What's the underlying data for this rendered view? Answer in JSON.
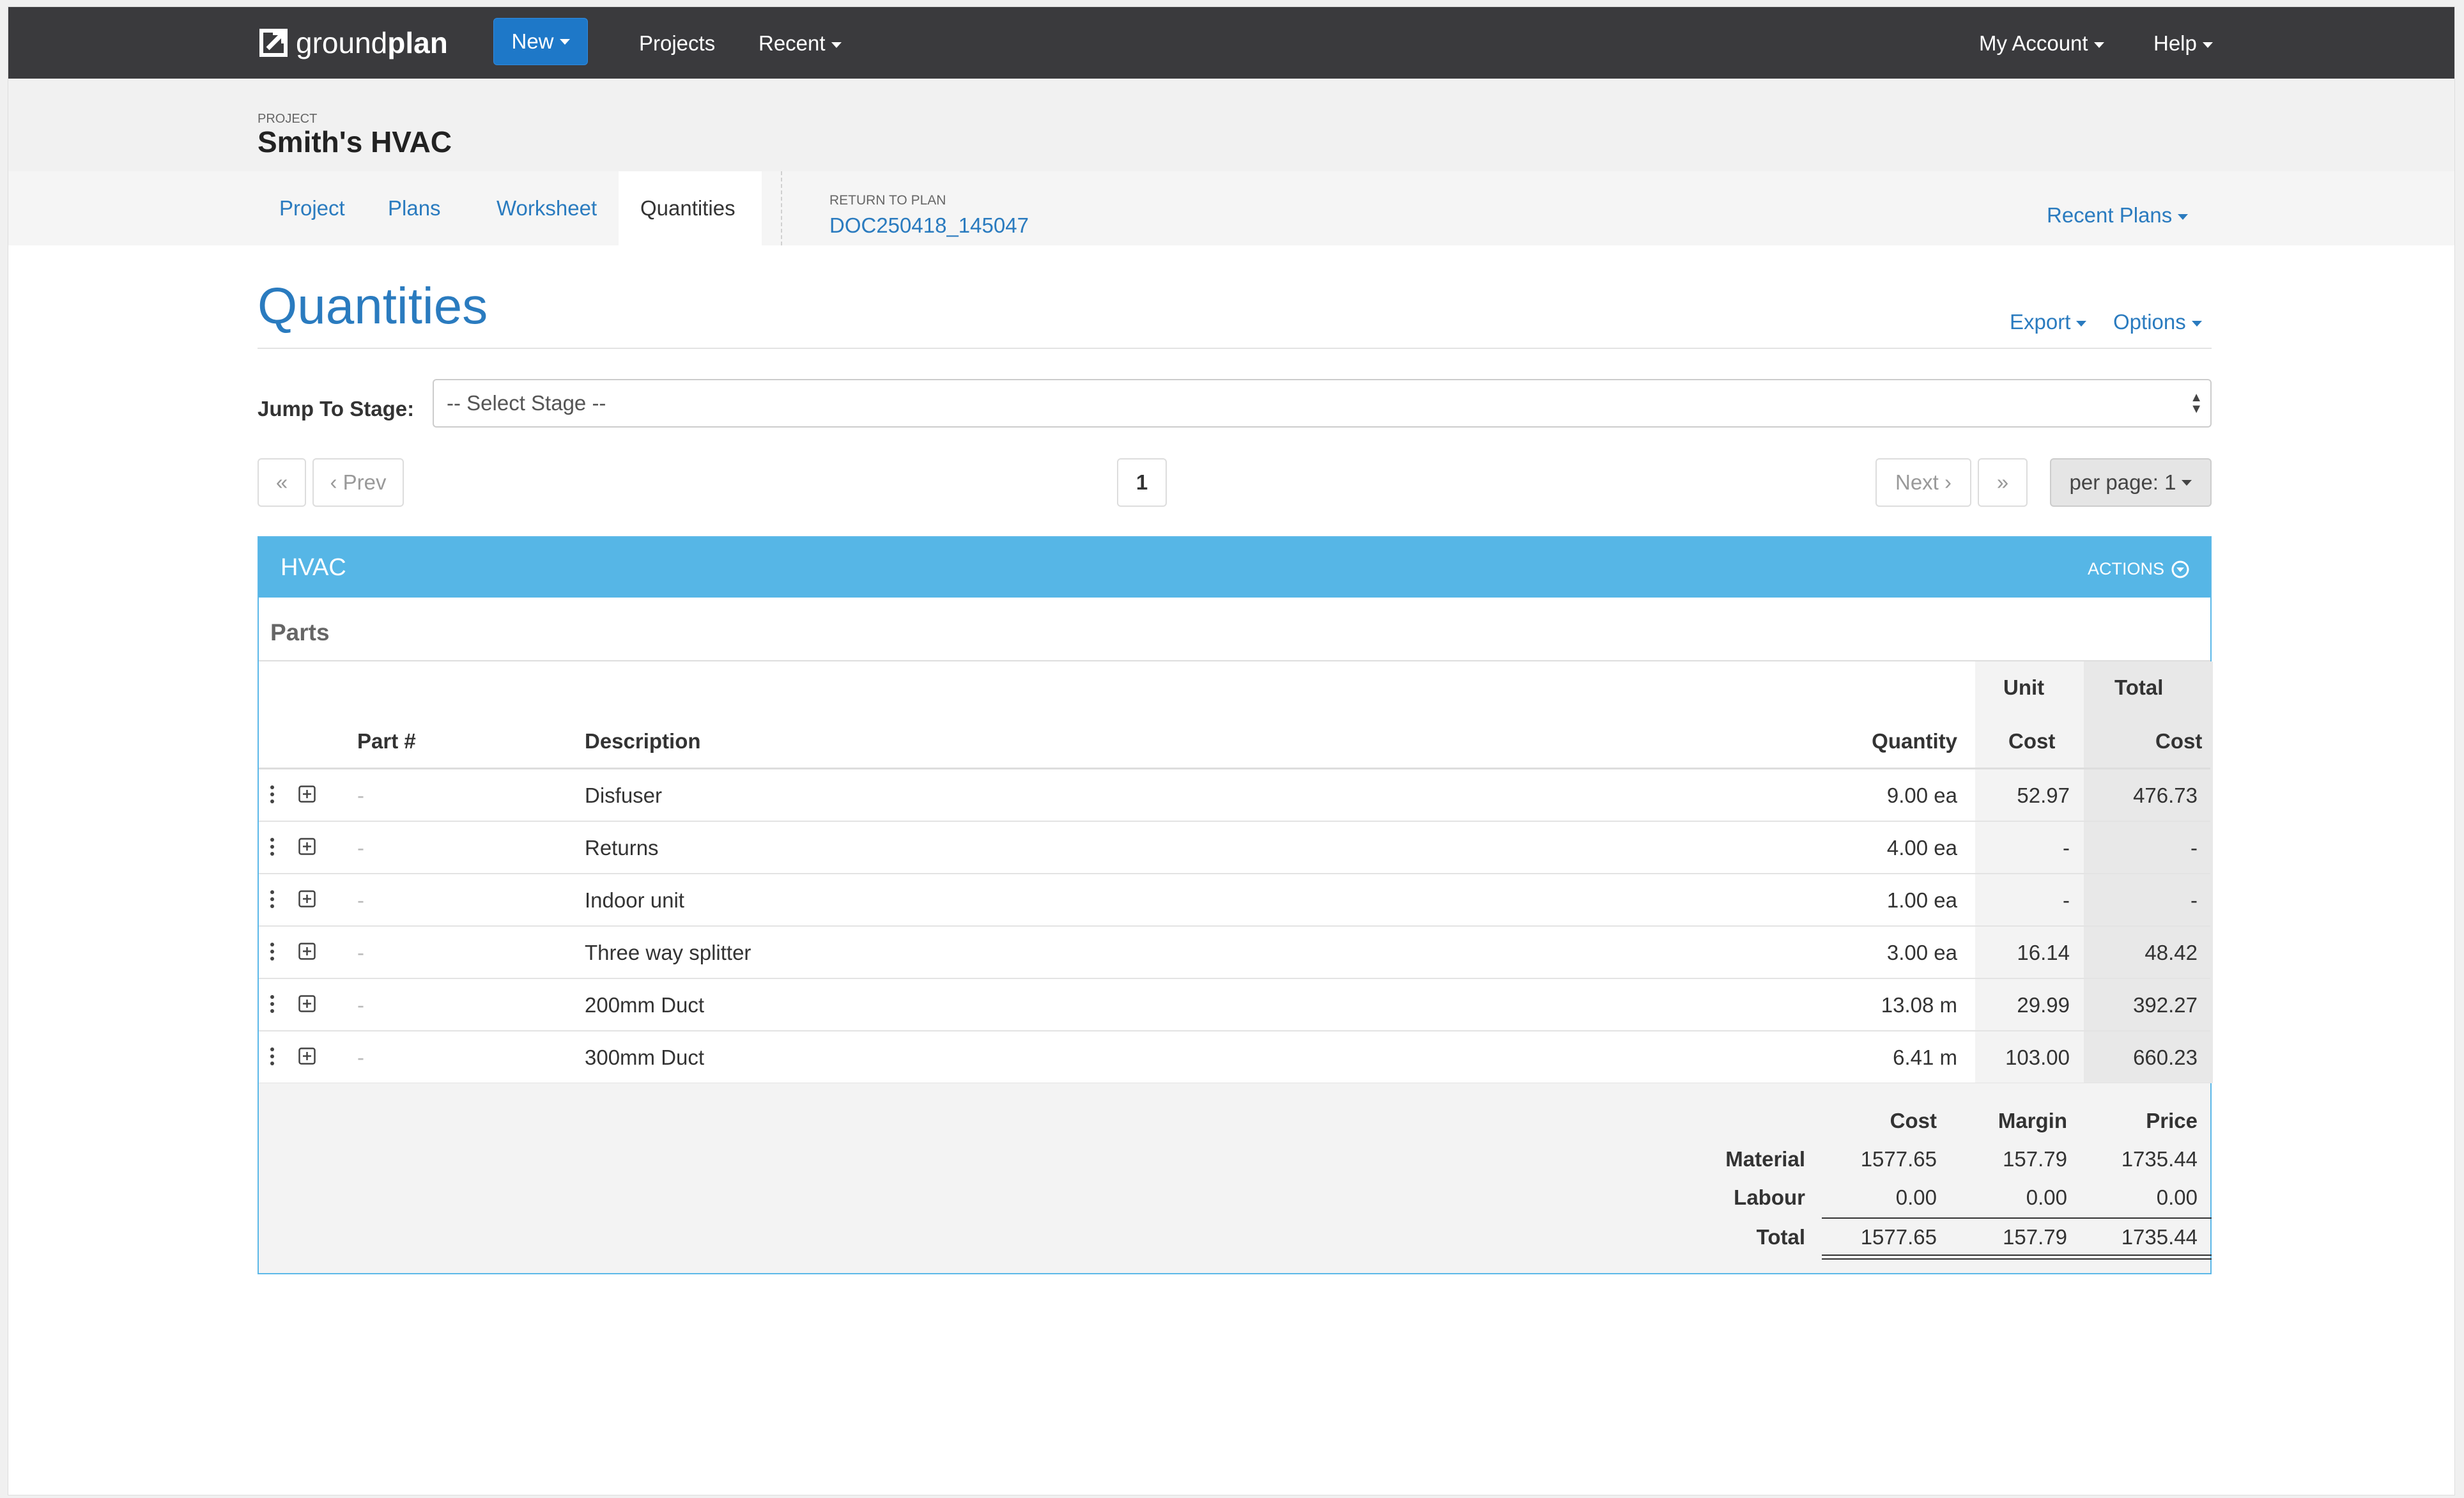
{
  "nav": {
    "logo_regular": "ground",
    "logo_bold": "plan",
    "new_label": "New",
    "projects_label": "Projects",
    "recent_label": "Recent",
    "account_label": "My Account",
    "help_label": "Help"
  },
  "project": {
    "label": "PROJECT",
    "title": "Smith's HVAC"
  },
  "tabs": [
    {
      "label": "Project"
    },
    {
      "label": "Plans"
    },
    {
      "label": "Worksheet"
    },
    {
      "label": "Quantities",
      "active": true
    }
  ],
  "return_to_plan": {
    "label": "RETURN TO PLAN",
    "doc": "DOC250418_145047"
  },
  "recent_plans_label": "Recent Plans",
  "page": {
    "title": "Quantities",
    "export_label": "Export",
    "options_label": "Options"
  },
  "stage": {
    "label": "Jump To Stage:",
    "value": "-- Select Stage --"
  },
  "pagination": {
    "first": "«",
    "prev": "‹ Prev",
    "current": "1",
    "next": "Next ›",
    "last": "»",
    "per_page": "per page: 1"
  },
  "panel": {
    "title": "HVAC",
    "actions_label": "ACTIONS",
    "section_title": "Parts",
    "headers": {
      "part": "Part #",
      "description": "Description",
      "quantity": "Quantity",
      "unit_top": "Unit",
      "unit_bottom": "Cost",
      "total_top": "Total",
      "total_bottom": "Cost"
    },
    "rows": [
      {
        "part": "-",
        "description": "Disfuser",
        "quantity": "9.00 ea",
        "unit_cost": "52.97",
        "total_cost": "476.73"
      },
      {
        "part": "-",
        "description": "Returns",
        "quantity": "4.00 ea",
        "unit_cost": "-",
        "total_cost": "-"
      },
      {
        "part": "-",
        "description": "Indoor unit",
        "quantity": "1.00 ea",
        "unit_cost": "-",
        "total_cost": "-"
      },
      {
        "part": "-",
        "description": "Three way splitter",
        "quantity": "3.00 ea",
        "unit_cost": "16.14",
        "total_cost": "48.42"
      },
      {
        "part": "-",
        "description": "200mm Duct",
        "quantity": "13.08 m",
        "unit_cost": "29.99",
        "total_cost": "392.27"
      },
      {
        "part": "-",
        "description": "300mm Duct",
        "quantity": "6.41 m",
        "unit_cost": "103.00",
        "total_cost": "660.23"
      }
    ],
    "summary": {
      "headers": {
        "cost": "Cost",
        "margin": "Margin",
        "price": "Price"
      },
      "material": {
        "label": "Material",
        "cost": "1577.65",
        "margin": "157.79",
        "price": "1735.44"
      },
      "labour": {
        "label": "Labour",
        "cost": "0.00",
        "margin": "0.00",
        "price": "0.00"
      },
      "total": {
        "label": "Total",
        "cost": "1577.65",
        "margin": "157.79",
        "price": "1735.44"
      }
    }
  },
  "colors": {
    "nav_bg": "#3a3a3d",
    "accent": "#2a7bbf",
    "button_blue": "#1e78c8",
    "panel_header": "#56b6e6"
  },
  "icons": {
    "logo": "groundplan-logo-icon",
    "actions": "chevron-circle-down-icon",
    "row_menu": "vertical-ellipsis-icon",
    "row_expand": "plus-square-icon"
  }
}
